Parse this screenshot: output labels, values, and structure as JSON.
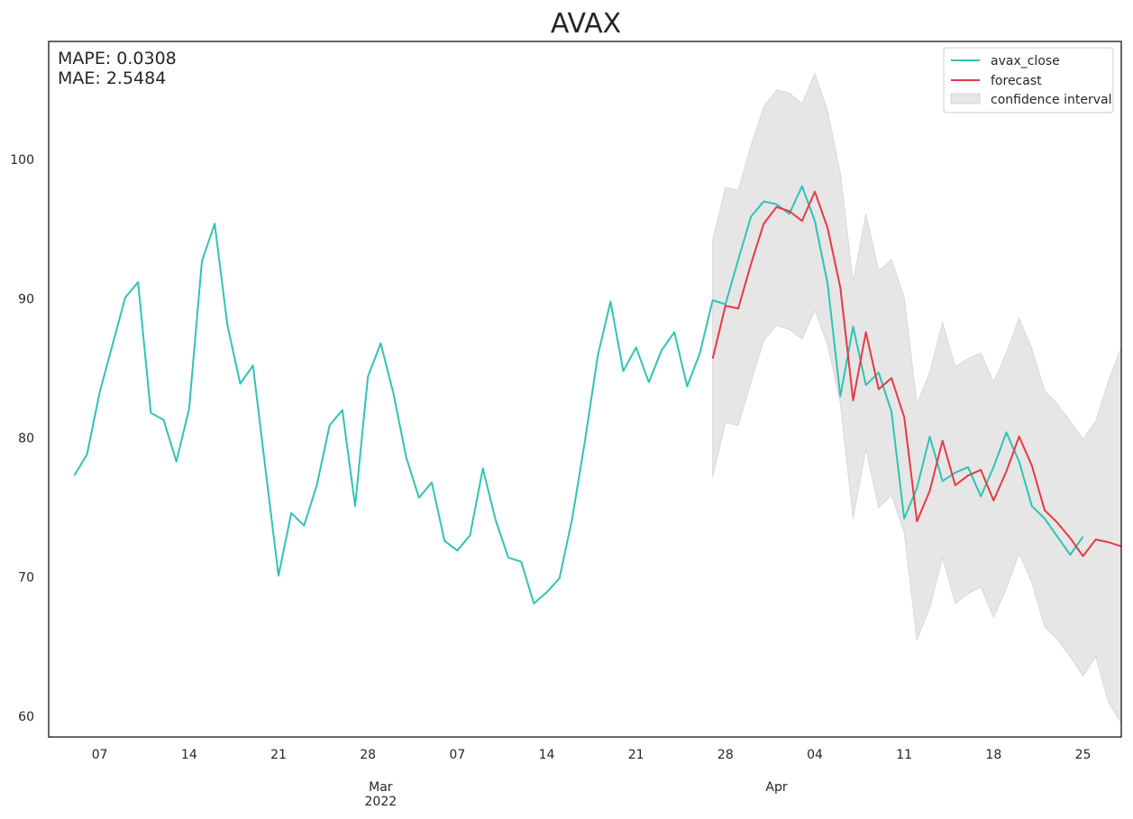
{
  "chart_data": {
    "type": "line",
    "title": "AVAX",
    "metrics": {
      "mape": "MAPE: 0.0308",
      "mae": "MAE: 2.5484"
    },
    "xlabel": "",
    "ylabel": "",
    "xlim": [
      "2022-02-03",
      "2022-04-28"
    ],
    "ylim": [
      58.5,
      108.5
    ],
    "y_ticks": [
      60,
      70,
      80,
      90,
      100
    ],
    "x_ticks": [
      {
        "date": "2022-02-07",
        "label": "07"
      },
      {
        "date": "2022-02-14",
        "label": "14"
      },
      {
        "date": "2022-02-21",
        "label": "21"
      },
      {
        "date": "2022-02-28",
        "label": "28"
      },
      {
        "date": "2022-03-07",
        "label": "07"
      },
      {
        "date": "2022-03-14",
        "label": "14"
      },
      {
        "date": "2022-03-21",
        "label": "21"
      },
      {
        "date": "2022-03-28",
        "label": "28"
      },
      {
        "date": "2022-04-04",
        "label": "04"
      },
      {
        "date": "2022-04-11",
        "label": "11"
      },
      {
        "date": "2022-04-18",
        "label": "18"
      },
      {
        "date": "2022-04-25",
        "label": "25"
      }
    ],
    "month_labels": [
      {
        "date": "2022-03-01",
        "label": "Mar",
        "sublabel": "2022"
      },
      {
        "date": "2022-04-01",
        "label": "Apr",
        "sublabel": ""
      }
    ],
    "grid": false,
    "legend": "top-right",
    "colors": {
      "avax_close": "#2ec4b6",
      "forecast": "#e63946",
      "confidence": "#e6e6e6"
    },
    "series": [
      {
        "name": "avax_close",
        "x": [
          "2022-02-05",
          "2022-02-06",
          "2022-02-07",
          "2022-02-08",
          "2022-02-09",
          "2022-02-10",
          "2022-02-11",
          "2022-02-12",
          "2022-02-13",
          "2022-02-14",
          "2022-02-15",
          "2022-02-16",
          "2022-02-17",
          "2022-02-18",
          "2022-02-19",
          "2022-02-20",
          "2022-02-21",
          "2022-02-22",
          "2022-02-23",
          "2022-02-24",
          "2022-02-25",
          "2022-02-26",
          "2022-02-27",
          "2022-02-28",
          "2022-03-01",
          "2022-03-02",
          "2022-03-03",
          "2022-03-04",
          "2022-03-05",
          "2022-03-06",
          "2022-03-07",
          "2022-03-08",
          "2022-03-09",
          "2022-03-10",
          "2022-03-11",
          "2022-03-12",
          "2022-03-13",
          "2022-03-14",
          "2022-03-15",
          "2022-03-16",
          "2022-03-17",
          "2022-03-18",
          "2022-03-19",
          "2022-03-20",
          "2022-03-21",
          "2022-03-22",
          "2022-03-23",
          "2022-03-24",
          "2022-03-25",
          "2022-03-26",
          "2022-03-27",
          "2022-03-28",
          "2022-03-29",
          "2022-03-30",
          "2022-03-31",
          "2022-04-01",
          "2022-04-02",
          "2022-04-03",
          "2022-04-04",
          "2022-04-05",
          "2022-04-06",
          "2022-04-07",
          "2022-04-08",
          "2022-04-09",
          "2022-04-10",
          "2022-04-11",
          "2022-04-12",
          "2022-04-13",
          "2022-04-14",
          "2022-04-15",
          "2022-04-16",
          "2022-04-17",
          "2022-04-18",
          "2022-04-19",
          "2022-04-20",
          "2022-04-21",
          "2022-04-22",
          "2022-04-23",
          "2022-04-24",
          "2022-04-25"
        ],
        "values": [
          77.3,
          78.8,
          83.3,
          86.7,
          90.1,
          91.2,
          81.8,
          81.3,
          78.3,
          82.1,
          92.7,
          95.4,
          88.1,
          83.9,
          85.2,
          77.6,
          70.1,
          74.6,
          73.7,
          76.6,
          80.9,
          82.0,
          75.1,
          84.4,
          86.8,
          83.2,
          78.6,
          75.7,
          76.8,
          72.6,
          71.9,
          73.0,
          77.8,
          74.1,
          71.4,
          71.1,
          68.1,
          68.9,
          69.9,
          74.2,
          79.8,
          85.9,
          89.8,
          84.8,
          86.5,
          84.0,
          86.3,
          87.6,
          83.7,
          86.1,
          89.9,
          89.6,
          92.8,
          95.9,
          97.0,
          96.8,
          96.1,
          98.1,
          95.6,
          91.1,
          83.0,
          88.0,
          83.8,
          84.7,
          81.9,
          74.2,
          76.4,
          80.1,
          76.9,
          77.5,
          77.9,
          75.8,
          77.9,
          80.4,
          78.3,
          75.1,
          74.2,
          72.9,
          71.6,
          72.9
        ]
      },
      {
        "name": "forecast",
        "x": [
          "2022-03-27",
          "2022-03-28",
          "2022-03-29",
          "2022-03-30",
          "2022-03-31",
          "2022-04-01",
          "2022-04-02",
          "2022-04-03",
          "2022-04-04",
          "2022-04-05",
          "2022-04-06",
          "2022-04-07",
          "2022-04-08",
          "2022-04-09",
          "2022-04-10",
          "2022-04-11",
          "2022-04-12",
          "2022-04-13",
          "2022-04-14",
          "2022-04-15",
          "2022-04-16",
          "2022-04-17",
          "2022-04-18",
          "2022-04-19",
          "2022-04-20",
          "2022-04-21",
          "2022-04-22",
          "2022-04-23",
          "2022-04-24",
          "2022-04-25",
          "2022-04-26",
          "2022-04-27",
          "2022-04-28"
        ],
        "values": [
          85.7,
          89.5,
          89.3,
          92.5,
          95.4,
          96.6,
          96.3,
          95.6,
          97.7,
          95.1,
          90.8,
          82.7,
          87.6,
          83.5,
          84.3,
          81.5,
          74.0,
          76.2,
          79.8,
          76.6,
          77.3,
          77.7,
          75.5,
          77.6,
          80.1,
          78.0,
          74.8,
          73.9,
          72.8,
          71.5,
          72.7,
          72.5,
          72.2
        ]
      }
    ],
    "confidence_interval": {
      "name": "confidence interval",
      "x": [
        "2022-03-27",
        "2022-03-28",
        "2022-03-29",
        "2022-03-30",
        "2022-03-31",
        "2022-04-01",
        "2022-04-02",
        "2022-04-03",
        "2022-04-04",
        "2022-04-05",
        "2022-04-06",
        "2022-04-07",
        "2022-04-08",
        "2022-04-09",
        "2022-04-10",
        "2022-04-11",
        "2022-04-12",
        "2022-04-13",
        "2022-04-14",
        "2022-04-15",
        "2022-04-16",
        "2022-04-17",
        "2022-04-18",
        "2022-04-19",
        "2022-04-20",
        "2022-04-21",
        "2022-04-22",
        "2022-04-23",
        "2022-04-24",
        "2022-04-25",
        "2022-04-26",
        "2022-04-27",
        "2022-04-28"
      ],
      "upper": [
        94.2,
        98.0,
        97.8,
        101.0,
        103.8,
        105.0,
        104.8,
        104.0,
        106.2,
        103.5,
        99.0,
        91.2,
        96.1,
        92.0,
        92.8,
        90.1,
        82.4,
        84.7,
        88.3,
        85.1,
        85.7,
        86.1,
        84.0,
        86.1,
        88.6,
        86.4,
        83.4,
        82.4,
        81.2,
        79.9,
        81.2,
        84.1,
        86.5
      ],
      "lower": [
        77.2,
        81.1,
        80.9,
        84.0,
        87.0,
        88.1,
        87.8,
        87.1,
        89.2,
        86.7,
        82.5,
        74.2,
        79.2,
        75.0,
        75.9,
        73.2,
        65.5,
        67.8,
        71.4,
        68.1,
        68.8,
        69.3,
        67.1,
        69.2,
        71.7,
        69.6,
        66.4,
        65.5,
        64.3,
        62.9,
        64.3,
        61.0,
        59.5
      ]
    },
    "legend_entries": [
      "avax_close",
      "forecast",
      "confidence interval"
    ]
  }
}
